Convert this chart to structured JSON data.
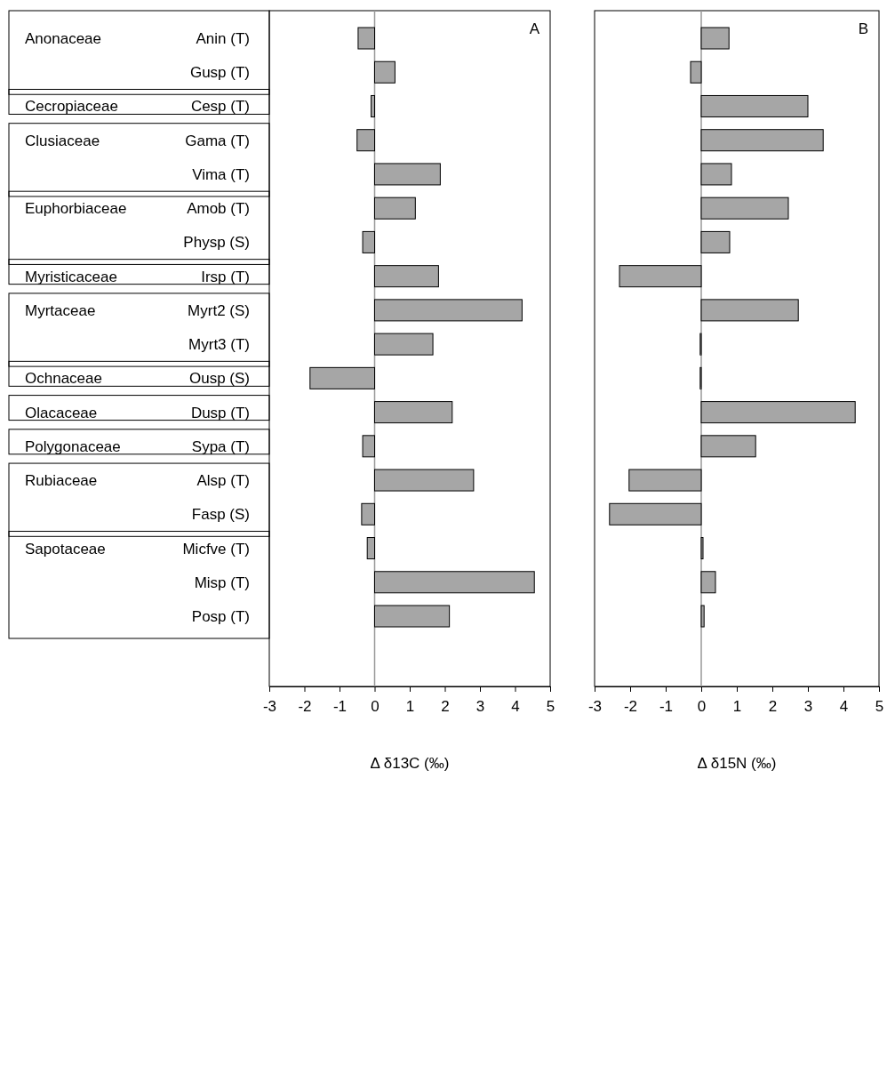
{
  "chart_data": [
    {
      "type": "bar",
      "orientation": "horizontal",
      "title": "A",
      "xlabel": "Δ δ13C (‰)",
      "categories": [
        "Anin (T)",
        "Gusp (T)",
        "Cesp (T)",
        "Gama (T)",
        "Vima (T)",
        "Amob (T)",
        "Physp (S)",
        "Irsp (T)",
        "Myrt2 (S)",
        "Myrt3 (T)",
        "Ousp (S)",
        "Dusp (T)",
        "Sypa (T)",
        "Alsp (T)",
        "Fasp (S)",
        "Micfve (T)",
        "Misp (T)",
        "Posp (T)"
      ],
      "values": [
        -0.47,
        0.58,
        -0.1,
        -0.5,
        1.87,
        1.16,
        -0.34,
        1.82,
        4.2,
        1.66,
        -1.84,
        2.21,
        -0.34,
        2.82,
        -0.37,
        -0.21,
        4.55,
        2.13
      ],
      "color": "#a6a6a6",
      "xlim": [
        -3,
        5
      ],
      "xticks": [
        -3,
        -2,
        -1,
        0,
        1,
        2,
        3,
        4,
        5
      ],
      "annotations": [
        "Anonaceae",
        "Cecropiaceae",
        "Clusiaceae",
        "Euphorbiaceae",
        "Myristicaceae",
        "Myrtaceae",
        "Ochnaceae",
        "Olacaceae",
        "Polygonaceae",
        "Rubiaceae",
        "Sapotaceae"
      ]
    },
    {
      "type": "bar",
      "orientation": "horizontal",
      "title": "B",
      "xlabel": "Δ δ15N (‰)",
      "tick_labels": "x",
      "categories": [
        null,
        null,
        null,
        null,
        null,
        null,
        null,
        null,
        null,
        null,
        null,
        null,
        null,
        null,
        null,
        null,
        null,
        null
      ],
      "values": [
        0.78,
        -0.3,
        3.0,
        3.43,
        0.85,
        2.45,
        0.8,
        -2.3,
        2.73,
        -0.03,
        -0.03,
        4.33,
        1.53,
        -2.03,
        -2.58,
        0.05,
        0.4,
        0.08
      ],
      "color": "#a6a6a6",
      "xlim": [
        -3,
        5
      ],
      "xticks": [
        -3,
        -2,
        -1,
        0,
        1,
        2,
        3,
        4,
        5
      ]
    }
  ]
}
